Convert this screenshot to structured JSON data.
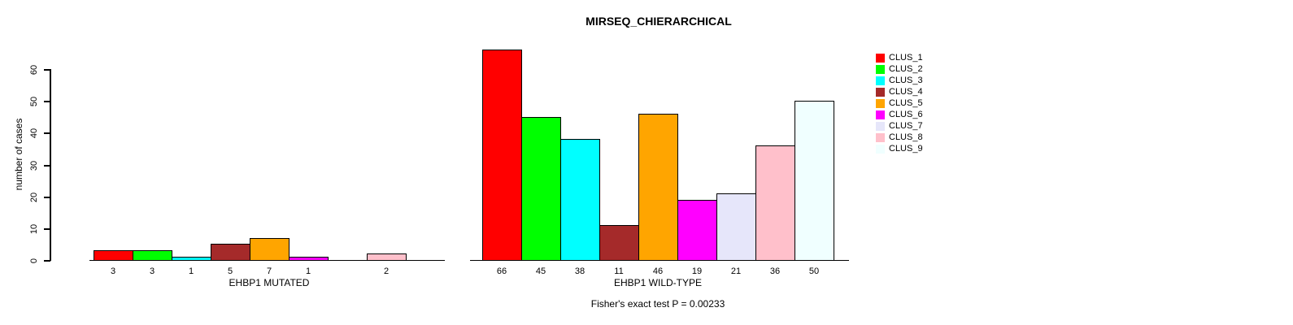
{
  "chart_data": {
    "type": "bar",
    "title": "MIRSEQ_CHIERARCHICAL",
    "ylabel": "number of cases",
    "ylim": [
      0,
      60
    ],
    "yticks": [
      0,
      10,
      20,
      30,
      40,
      50,
      60
    ],
    "grid": false,
    "legend_position": "right",
    "legend": [
      {
        "label": "CLUS_1",
        "color": "#FF0000"
      },
      {
        "label": "CLUS_2",
        "color": "#00FF00"
      },
      {
        "label": "CLUS_3",
        "color": "#00FFFF"
      },
      {
        "label": "CLUS_4",
        "color": "#A52A2A"
      },
      {
        "label": "CLUS_5",
        "color": "#FFA500"
      },
      {
        "label": "CLUS_6",
        "color": "#FF00FF"
      },
      {
        "label": "CLUS_7",
        "color": "#E6E6FA"
      },
      {
        "label": "CLUS_8",
        "color": "#FFC0CB"
      },
      {
        "label": "CLUS_9",
        "color": "#F0FFFF"
      }
    ],
    "panels": [
      {
        "xlabel": "EHBP1 MUTATED",
        "categories": [
          "CLUS_1",
          "CLUS_2",
          "CLUS_3",
          "CLUS_4",
          "CLUS_5",
          "CLUS_6",
          "CLUS_7",
          "CLUS_8",
          "CLUS_9"
        ],
        "values": [
          3,
          3,
          1,
          5,
          7,
          1,
          0,
          2,
          0
        ],
        "bar_labels": [
          "3",
          "3",
          "1",
          "5",
          "7",
          "1",
          "",
          "2",
          ""
        ]
      },
      {
        "xlabel": "EHBP1 WILD-TYPE",
        "categories": [
          "CLUS_1",
          "CLUS_2",
          "CLUS_3",
          "CLUS_4",
          "CLUS_5",
          "CLUS_6",
          "CLUS_7",
          "CLUS_8",
          "CLUS_9"
        ],
        "values": [
          66,
          45,
          38,
          11,
          46,
          19,
          21,
          36,
          50
        ],
        "bar_labels": [
          "66",
          "45",
          "38",
          "11",
          "46",
          "19",
          "21",
          "36",
          "50"
        ]
      }
    ],
    "footnote": "Fisher's exact test P = 0.00233",
    "bar_border_color": "#000000",
    "text_color": "#000000"
  }
}
